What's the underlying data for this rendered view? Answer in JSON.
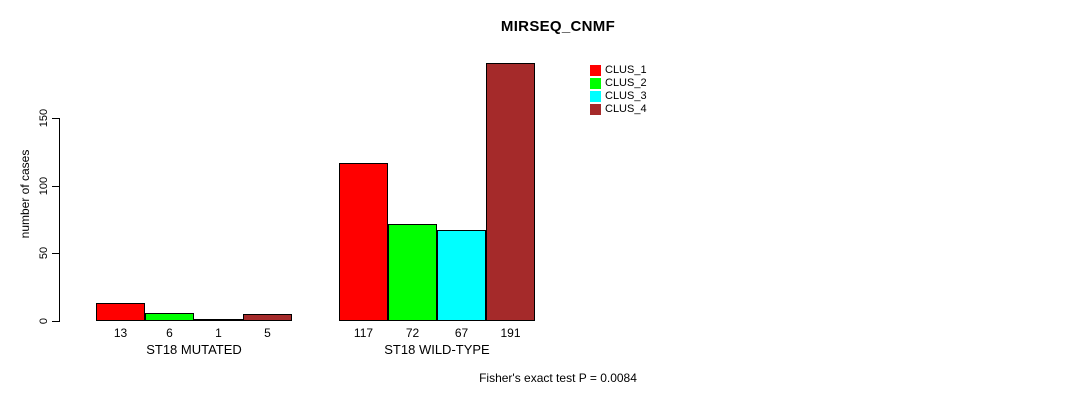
{
  "chart_data": {
    "type": "bar",
    "title": "MIRSEQ_CNMF",
    "ylabel": "number of cases",
    "ylim": [
      0,
      150
    ],
    "yticks": [
      0,
      50,
      100,
      150
    ],
    "grid": false,
    "legend_position": "inside-top-right",
    "categories": [
      "ST18 MUTATED",
      "ST18 WILD-TYPE"
    ],
    "series": [
      {
        "name": "CLUS_1",
        "color": "#FF0000",
        "values": [
          13,
          117
        ]
      },
      {
        "name": "CLUS_2",
        "color": "#00FF00",
        "values": [
          6,
          72
        ]
      },
      {
        "name": "CLUS_3",
        "color": "#00FFFF",
        "values": [
          1,
          67
        ]
      },
      {
        "name": "CLUS_4",
        "color": "#A52A2A",
        "values": [
          5,
          191
        ]
      }
    ],
    "bar_border_color": "#000000",
    "background_color": "#FFFFFF",
    "text_color": "#000000",
    "note": "Fisher's exact test P = 0.0084"
  }
}
